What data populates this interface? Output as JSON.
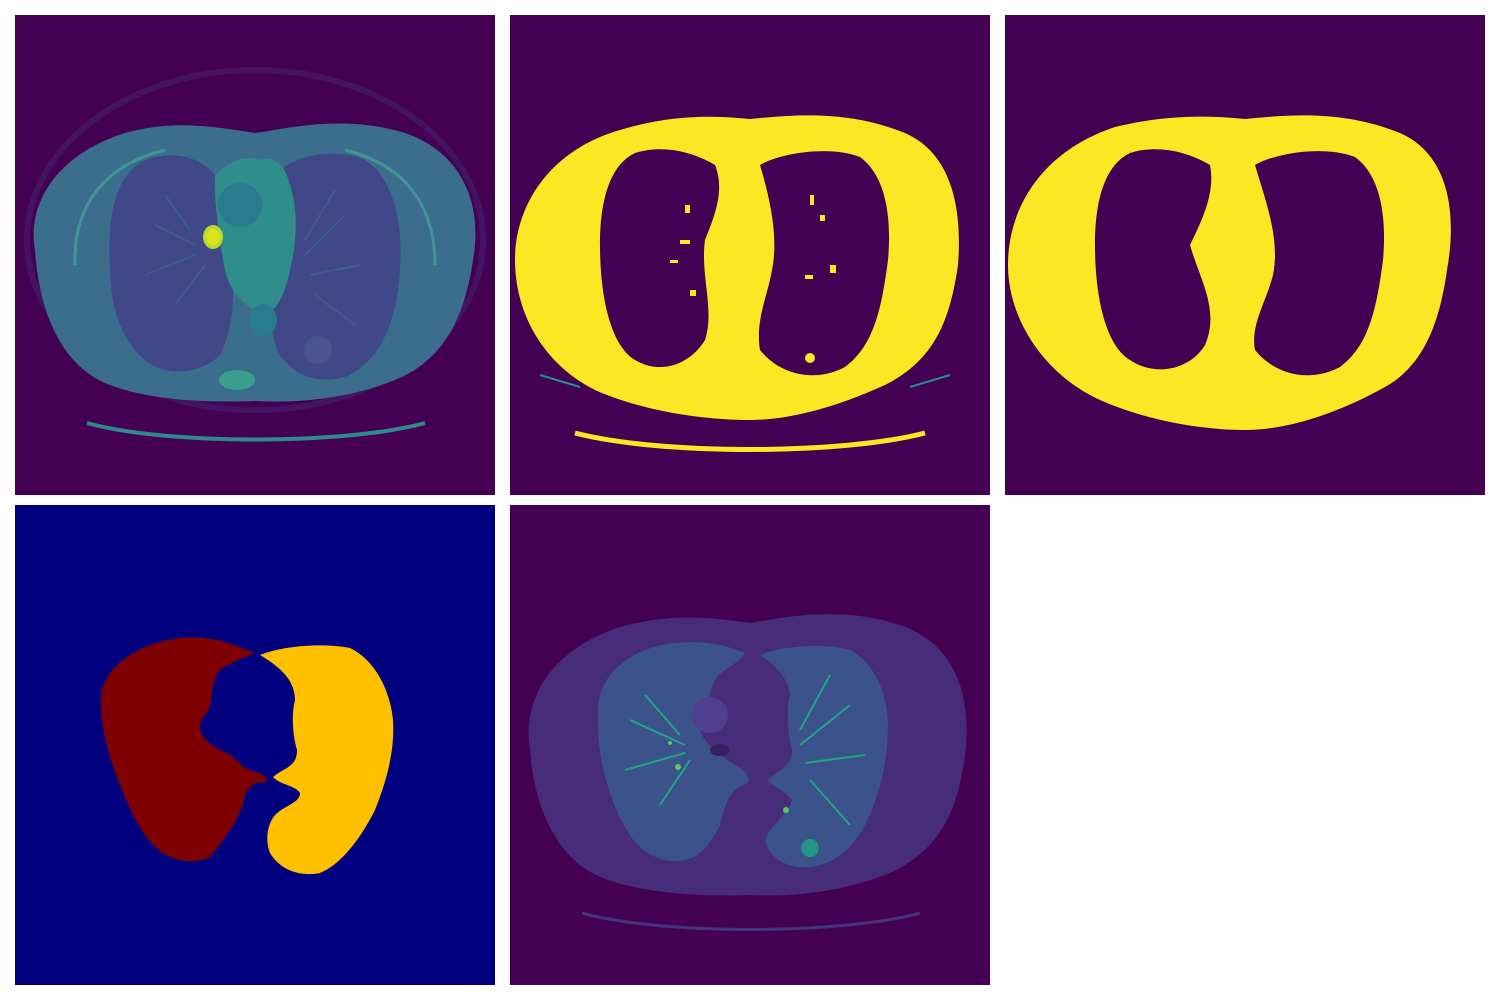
{
  "figure": {
    "panels": [
      {
        "id": "ct-slice",
        "colormap": "viridis",
        "background": "#440154"
      },
      {
        "id": "threshold-mask",
        "colormap": "viridis",
        "background": "#440154",
        "foreground": "#fde725"
      },
      {
        "id": "filled-body-mask",
        "colormap": "viridis",
        "background": "#440154",
        "foreground": "#fde725"
      },
      {
        "id": "lung-labels",
        "colormap": "jet",
        "background": "#00007f",
        "labels": {
          "right-lung": "#7f0000",
          "left-lung": "#ffc000"
        }
      },
      {
        "id": "masked-lung-ct",
        "colormap": "viridis",
        "background": "#440154"
      }
    ]
  }
}
